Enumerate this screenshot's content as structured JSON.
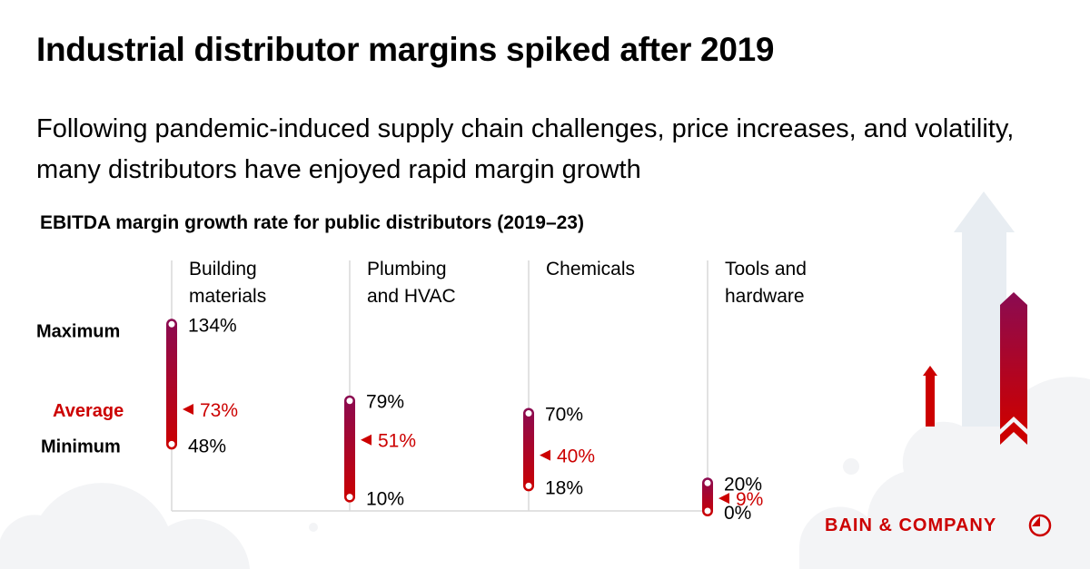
{
  "title": "Industrial distributor margins spiked after 2019",
  "subtitle": "Following pandemic-induced supply chain challenges, price increases, and volatility, many distributors have enjoyed rapid margin growth",
  "chart_data": {
    "type": "range",
    "title": "EBITDA margin growth rate for public distributors (2019–23)",
    "row_labels": {
      "maximum": "Maximum",
      "average": "Average",
      "minimum": "Minimum"
    },
    "categories": [
      {
        "lines": [
          "Building",
          "materials"
        ],
        "max": 134,
        "avg": 73,
        "min": 48,
        "max_label": "134%",
        "avg_label": "73%",
        "min_label": "48%"
      },
      {
        "lines": [
          "Plumbing",
          "and HVAC"
        ],
        "max": 79,
        "avg": 51,
        "min": 10,
        "max_label": "79%",
        "avg_label": "51%",
        "min_label": "10%"
      },
      {
        "lines": [
          "Chemicals"
        ],
        "max": 70,
        "avg": 40,
        "min": 18,
        "max_label": "70%",
        "avg_label": "40%",
        "min_label": "18%"
      },
      {
        "lines": [
          "Tools and",
          "hardware"
        ],
        "max": 20,
        "avg": 9,
        "min": 0,
        "max_label": "20%",
        "avg_label": "9%",
        "min_label": "0%"
      }
    ],
    "unit": "%",
    "colors": {
      "bar_top": "#8a0b52",
      "bar_bottom": "#cc0000",
      "average": "#cc0000",
      "grid": "#d9d9d9"
    }
  },
  "brand": {
    "name": "BAIN & COMPANY",
    "color": "#cc0000"
  }
}
